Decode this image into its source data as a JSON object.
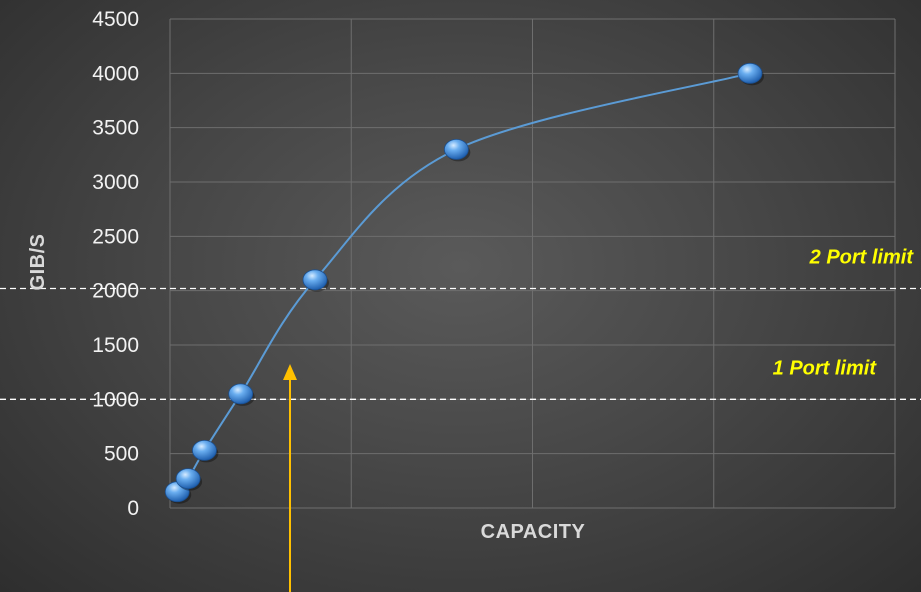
{
  "chart_data": {
    "type": "scatter",
    "title": "",
    "xlabel": "CAPACITY",
    "ylabel": "GIB/S",
    "ylim": [
      0,
      4500
    ],
    "xlim": [
      0,
      4
    ],
    "y_ticks": [
      "0",
      "500",
      "1000",
      "1500",
      "2000",
      "2500",
      "3000",
      "3500",
      "4000",
      "4500"
    ],
    "x_tick_labels_shown": false,
    "grid": true,
    "smooth_line": true,
    "series": [
      {
        "x": [
          0.04,
          0.1,
          0.19,
          0.39,
          0.8,
          1.58,
          3.2
        ],
        "y": [
          150,
          270,
          530,
          1050,
          2100,
          3300,
          4000
        ]
      }
    ],
    "reference_lines": [
      {
        "label": "2 Port limit",
        "y": 2020
      },
      {
        "label": "1 Port limit",
        "y": 1000
      }
    ],
    "colors": {
      "line": "#5b9bd5",
      "marker": "#4f8fd3",
      "grid": "#6e6e6e",
      "reference": "#ffffff",
      "annotation_label": "#ffff00",
      "arrow": "#ffc000"
    }
  }
}
